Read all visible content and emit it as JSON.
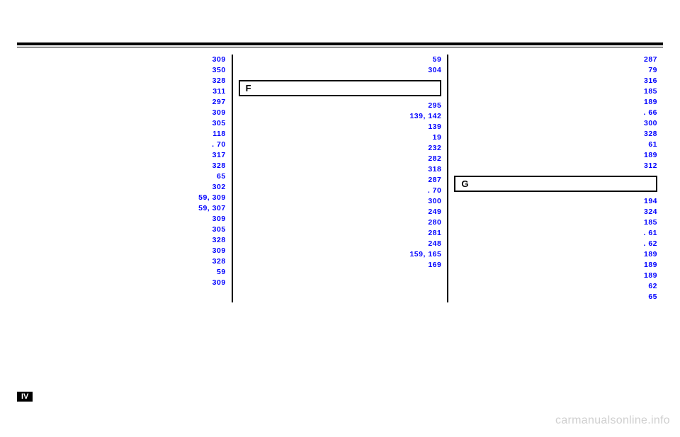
{
  "colors": {
    "link": "#0000ff",
    "rule": "#000000",
    "watermark": "#cfcfcf"
  },
  "typography": {
    "entry_fontsize": 10.5,
    "entry_lineheight": 15,
    "header_fontsize": 13,
    "badge_fontsize": 11,
    "watermark_fontsize": 16
  },
  "col1": [
    {
      "label": "",
      "pages": "309"
    },
    {
      "label": "",
      "pages": "350"
    },
    {
      "label": "",
      "pages": "328"
    },
    {
      "label": "",
      "pages": "311"
    },
    {
      "label": "",
      "pages": "297"
    },
    {
      "label": "",
      "pages": "309"
    },
    {
      "label": "",
      "pages": "305"
    },
    {
      "label": "",
      "pages": "118"
    },
    {
      "label": "",
      "pages": ". 70"
    },
    {
      "label": "",
      "pages": "317"
    },
    {
      "label": "",
      "pages": "328"
    },
    {
      "label": "",
      "pages": ""
    },
    {
      "label": "",
      "pages": "65"
    },
    {
      "label": "",
      "pages": "302"
    },
    {
      "label": "",
      "pages": ""
    },
    {
      "label": "",
      "pages": "59, 309"
    },
    {
      "label": "",
      "pages": "59, 307"
    },
    {
      "label": "",
      "pages": "309"
    },
    {
      "label": "",
      "pages": "305"
    },
    {
      "label": "",
      "pages": "328"
    },
    {
      "label": "",
      "pages": "309"
    },
    {
      "label": "",
      "pages": "328"
    },
    {
      "label": "",
      "pages": "59"
    },
    {
      "label": "",
      "pages": ""
    },
    {
      "label": "",
      "pages": "309"
    }
  ],
  "col2_top": [
    {
      "label": "",
      "pages": "59"
    },
    {
      "label": "",
      "pages": "304"
    }
  ],
  "section_f": "F",
  "col2_mid": [
    {
      "label": "",
      "pages": "295"
    },
    {
      "label": "",
      "pages": "139, 142"
    },
    {
      "label": "",
      "pages": ""
    },
    {
      "label": "",
      "pages": "139"
    },
    {
      "label": "",
      "pages": "19"
    },
    {
      "label": "",
      "pages": ""
    },
    {
      "label": "",
      "pages": "232"
    },
    {
      "label": "",
      "pages": "282"
    },
    {
      "label": "",
      "pages": "318"
    },
    {
      "label": "",
      "pages": "287"
    },
    {
      "label": "",
      "pages": ". 70"
    },
    {
      "label": "",
      "pages": "300"
    },
    {
      "label": "",
      "pages": ""
    },
    {
      "label": "",
      "pages": "249"
    },
    {
      "label": "",
      "pages": "280"
    },
    {
      "label": "",
      "pages": "281"
    },
    {
      "label": "",
      "pages": "248"
    },
    {
      "label": "",
      "pages": ""
    },
    {
      "label": "",
      "pages": "159, 165"
    },
    {
      "label": "",
      "pages": "169"
    }
  ],
  "col3_top": [
    {
      "label": "",
      "pages": "287"
    },
    {
      "label": "",
      "pages": "79"
    },
    {
      "label": "",
      "pages": ""
    },
    {
      "label": "",
      "pages": "316"
    },
    {
      "label": "",
      "pages": "185"
    },
    {
      "label": "",
      "pages": "189"
    },
    {
      "label": "",
      "pages": ". 66"
    },
    {
      "label": "",
      "pages": "300"
    },
    {
      "label": "",
      "pages": "328"
    },
    {
      "label": "",
      "pages": "61"
    },
    {
      "label": "",
      "pages": "189"
    },
    {
      "label": "",
      "pages": "312"
    }
  ],
  "section_g": "G",
  "col3_mid": [
    {
      "label": "",
      "pages": "194"
    },
    {
      "label": "",
      "pages": "324"
    },
    {
      "label": "",
      "pages": "185"
    },
    {
      "label": "",
      "pages": ". 61"
    },
    {
      "label": "",
      "pages": ". 62"
    },
    {
      "label": "",
      "pages": "189"
    },
    {
      "label": "",
      "pages": "189"
    },
    {
      "label": "",
      "pages": "189"
    },
    {
      "label": "",
      "pages": ""
    },
    {
      "label": "",
      "pages": "62"
    },
    {
      "label": "",
      "pages": "65"
    }
  ],
  "badge": "IV",
  "watermark": "carmanualsonline.info"
}
